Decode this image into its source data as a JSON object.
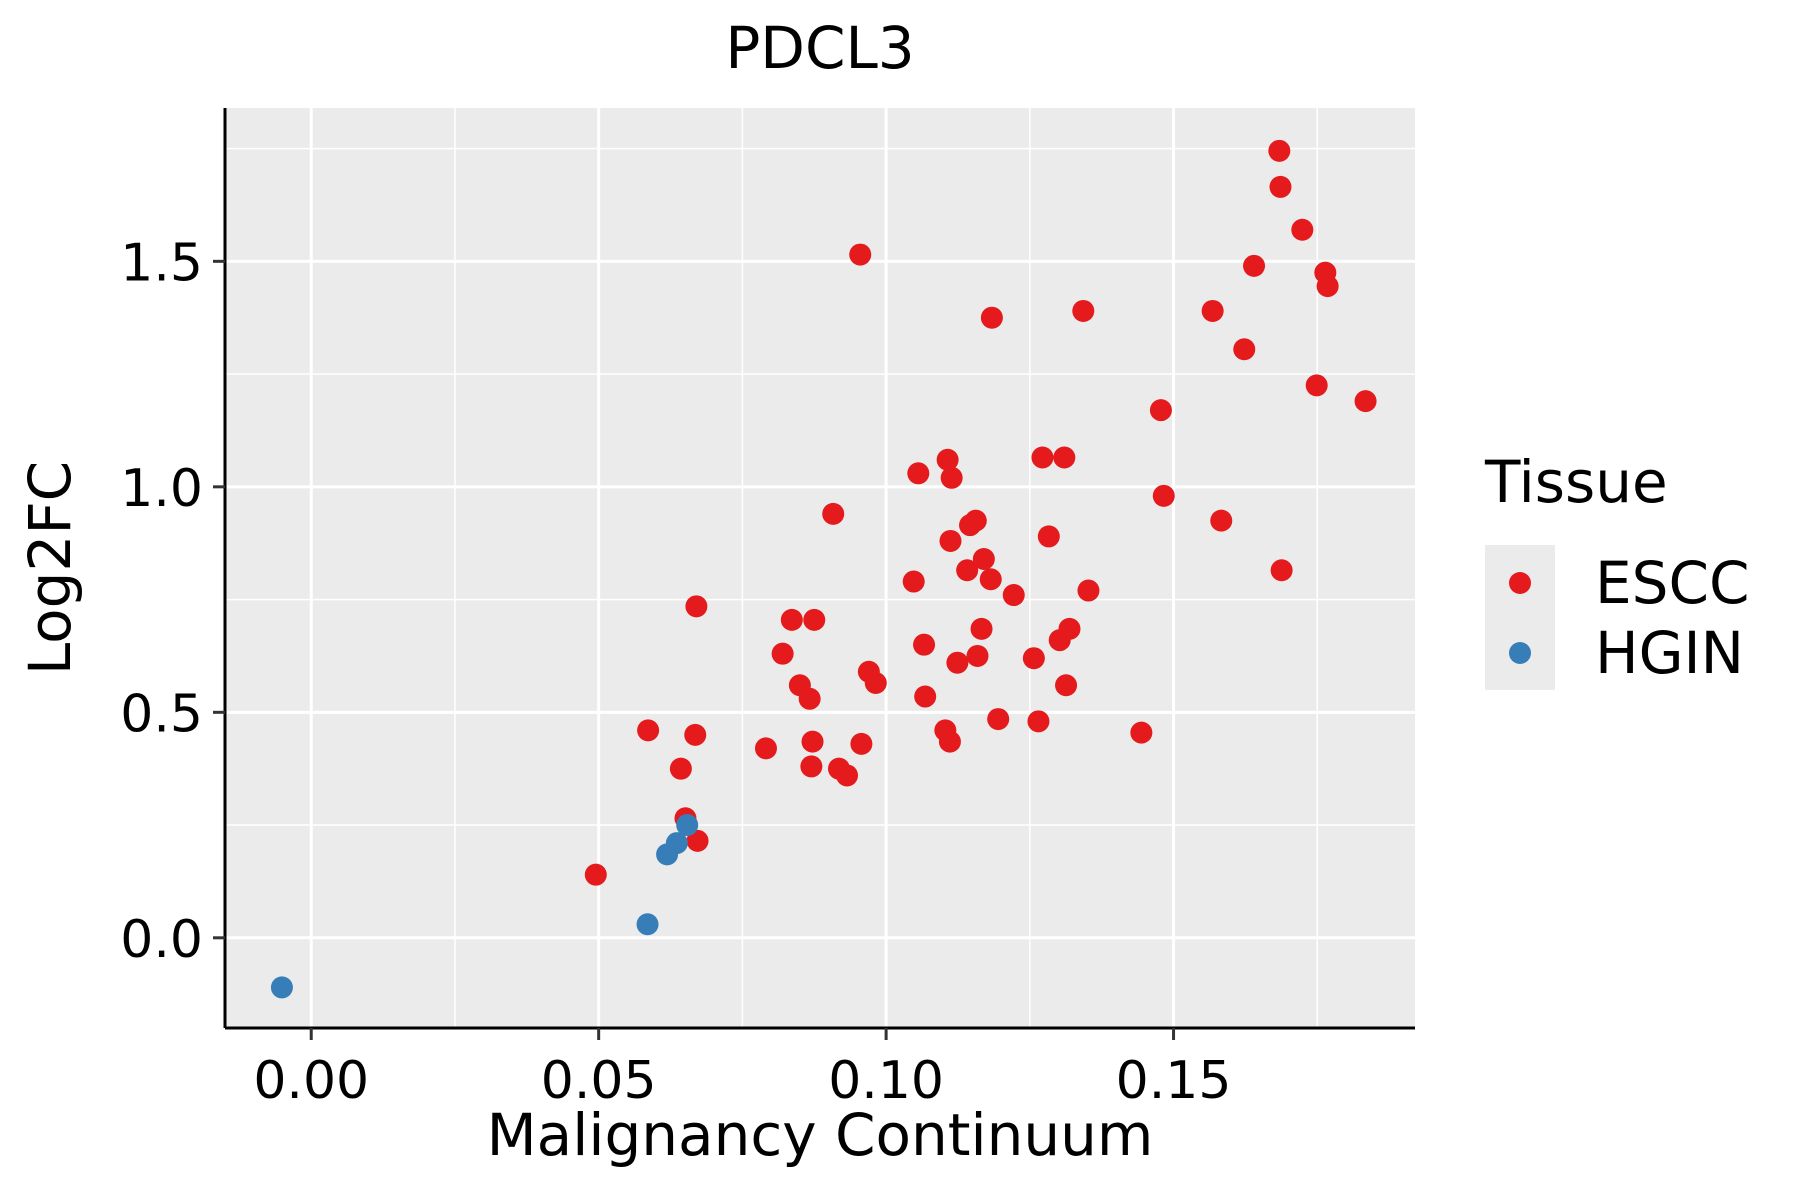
{
  "chart_data": {
    "type": "scatter",
    "title": "PDCL3",
    "xlabel": "Malignancy Continuum",
    "ylabel": "Log2FC",
    "xlim": [
      -0.015,
      0.192
    ],
    "ylim": [
      -0.2,
      1.84
    ],
    "x_ticks": [
      0.0,
      0.05,
      0.1,
      0.15
    ],
    "x_tick_labels": [
      "0.00",
      "0.05",
      "0.10",
      "0.15"
    ],
    "y_ticks": [
      0.0,
      0.5,
      1.0,
      1.5
    ],
    "y_tick_labels": [
      "0.0",
      "0.5",
      "1.0",
      "1.5"
    ],
    "grid": true,
    "panel_background": "#ebebeb",
    "legend": {
      "title": "Tissue",
      "position": "right",
      "entries": [
        {
          "label": "ESCC",
          "color": "#e41a1c"
        },
        {
          "label": "HGIN",
          "color": "#377eb8"
        }
      ]
    },
    "series": [
      {
        "name": "ESCC",
        "color": "#e41a1c",
        "points": [
          [
            0.0495,
            0.14
          ],
          [
            0.0586,
            0.46
          ],
          [
            0.0643,
            0.375
          ],
          [
            0.0651,
            0.265
          ],
          [
            0.0668,
            0.45
          ],
          [
            0.067,
            0.735
          ],
          [
            0.0672,
            0.215
          ],
          [
            0.0791,
            0.42
          ],
          [
            0.082,
            0.63
          ],
          [
            0.0836,
            0.705
          ],
          [
            0.085,
            0.56
          ],
          [
            0.0867,
            0.53
          ],
          [
            0.087,
            0.38
          ],
          [
            0.0872,
            0.435
          ],
          [
            0.0875,
            0.705
          ],
          [
            0.0908,
            0.94
          ],
          [
            0.0918,
            0.375
          ],
          [
            0.0932,
            0.36
          ],
          [
            0.0955,
            1.515
          ],
          [
            0.0957,
            0.43
          ],
          [
            0.097,
            0.59
          ],
          [
            0.0982,
            0.565
          ],
          [
            0.1048,
            0.79
          ],
          [
            0.1056,
            1.03
          ],
          [
            0.1066,
            0.65
          ],
          [
            0.1068,
            0.535
          ],
          [
            0.1103,
            0.46
          ],
          [
            0.1107,
            1.06
          ],
          [
            0.1111,
            0.435
          ],
          [
            0.1112,
            0.88
          ],
          [
            0.1114,
            1.02
          ],
          [
            0.1124,
            0.61
          ],
          [
            0.1141,
            0.815
          ],
          [
            0.1146,
            0.915
          ],
          [
            0.1156,
            0.925
          ],
          [
            0.1159,
            0.625
          ],
          [
            0.1166,
            0.685
          ],
          [
            0.117,
            0.84
          ],
          [
            0.1182,
            0.795
          ],
          [
            0.1184,
            1.375
          ],
          [
            0.1195,
            0.485
          ],
          [
            0.1222,
            0.76
          ],
          [
            0.1257,
            0.62
          ],
          [
            0.1265,
            0.48
          ],
          [
            0.1272,
            1.065
          ],
          [
            0.1283,
            0.89
          ],
          [
            0.1302,
            0.66
          ],
          [
            0.131,
            1.065
          ],
          [
            0.1313,
            0.56
          ],
          [
            0.1319,
            0.685
          ],
          [
            0.1343,
            1.39
          ],
          [
            0.1352,
            0.77
          ],
          [
            0.1444,
            0.455
          ],
          [
            0.1478,
            1.17
          ],
          [
            0.1483,
            0.98
          ],
          [
            0.1568,
            1.39
          ],
          [
            0.1583,
            0.925
          ],
          [
            0.1623,
            1.305
          ],
          [
            0.164,
            1.49
          ],
          [
            0.1684,
            1.745
          ],
          [
            0.1686,
            1.665
          ],
          [
            0.1688,
            0.815
          ],
          [
            0.1724,
            1.57
          ],
          [
            0.1749,
            1.225
          ],
          [
            0.1764,
            1.475
          ],
          [
            0.1768,
            1.445
          ],
          [
            0.1834,
            1.19
          ]
        ]
      },
      {
        "name": "HGIN",
        "color": "#377eb8",
        "points": [
          [
            -0.0051,
            -0.11
          ],
          [
            0.0585,
            0.03
          ],
          [
            0.0619,
            0.185
          ],
          [
            0.0636,
            0.21
          ],
          [
            0.0654,
            0.25
          ]
        ]
      }
    ]
  }
}
